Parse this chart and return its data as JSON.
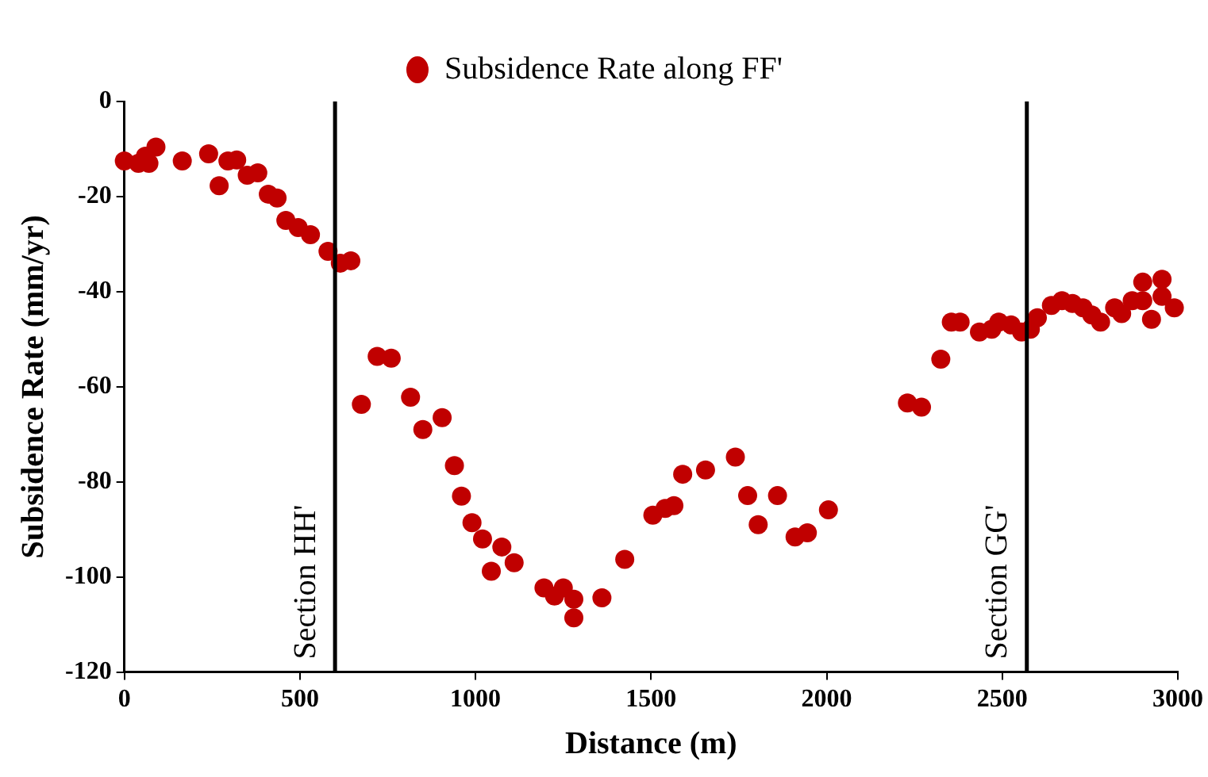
{
  "chart_data": {
    "type": "scatter",
    "xlabel": "Distance (m)",
    "ylabel": "Subsidence Rate (mm/yr)",
    "xlim": [
      0,
      3000
    ],
    "xticks": [
      0,
      500,
      1000,
      1500,
      2000,
      2500,
      3000
    ],
    "ylim": [
      -120,
      0
    ],
    "yticks": [
      -120,
      -100,
      -80,
      -60,
      -40,
      -20,
      0
    ],
    "grid": false,
    "legend": "top",
    "marker": "circle",
    "ref_lines": [
      {
        "axis": "x",
        "value": 600,
        "label": "Section HH'",
        "color": "#000000"
      },
      {
        "axis": "x",
        "value": 2570,
        "label": "Section GG'",
        "color": "#000000"
      }
    ],
    "series": [
      {
        "name": "Subsidence Rate along FF'",
        "color": "#c00000",
        "x": [
          0,
          40,
          60,
          70,
          90,
          165,
          240,
          270,
          295,
          320,
          350,
          380,
          410,
          435,
          460,
          495,
          530,
          580,
          615,
          645,
          675,
          720,
          760,
          815,
          850,
          905,
          940,
          960,
          990,
          1020,
          1045,
          1075,
          1110,
          1195,
          1225,
          1250,
          1280,
          1280,
          1360,
          1425,
          1505,
          1540,
          1565,
          1590,
          1655,
          1740,
          1775,
          1805,
          1860,
          1910,
          1945,
          2005,
          2230,
          2270,
          2325,
          2355,
          2380,
          2435,
          2470,
          2490,
          2525,
          2555,
          2580,
          2600,
          2640,
          2670,
          2700,
          2730,
          2755,
          2780,
          2820,
          2840,
          2870,
          2900,
          2900,
          2925,
          2955,
          2955,
          2990
        ],
        "values": [
          -12.5,
          -13,
          -11.5,
          -13,
          -9.6,
          -12.5,
          -11,
          -17.7,
          -12.5,
          -12.3,
          -15.5,
          -15,
          -19.5,
          -20.3,
          -25,
          -26.5,
          -28,
          -31.5,
          -34,
          -33.5,
          -63.7,
          -53.6,
          -54,
          -62.2,
          -69,
          -66.5,
          -76.6,
          -83,
          -88.6,
          -92,
          -98.8,
          -93.7,
          -97,
          -102.3,
          -104,
          -102.3,
          -104.7,
          -108.6,
          -104.4,
          -96.3,
          -87,
          -85.6,
          -85,
          -78.4,
          -77.5,
          -74.8,
          -82.9,
          -89,
          -82.9,
          -91.6,
          -90.7,
          -85.9,
          -63.4,
          -64.3,
          -54.2,
          -46.4,
          -46.4,
          -48.5,
          -47.9,
          -46.4,
          -47,
          -48.5,
          -47.9,
          -45.5,
          -42.9,
          -41.9,
          -42.5,
          -43.4,
          -44.9,
          -46.4,
          -43.4,
          -44.6,
          -41.9,
          -41.9,
          -38,
          -45.8,
          -37.4,
          -41,
          -43.4
        ]
      }
    ]
  }
}
